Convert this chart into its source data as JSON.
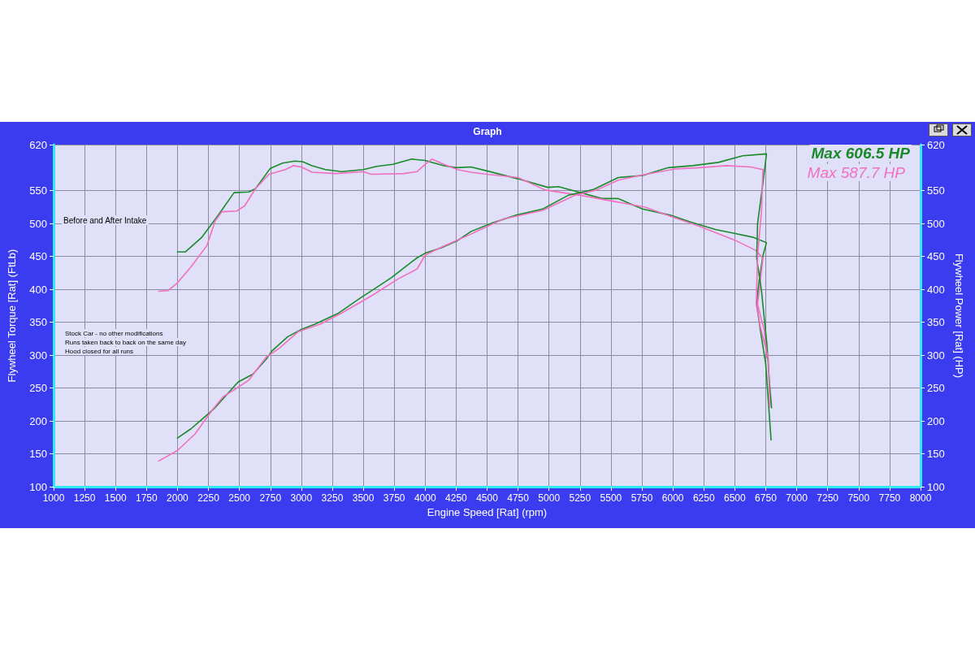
{
  "chart_data": {
    "type": "line",
    "title": "Graph",
    "xlabel": "Engine Speed [Rat] (rpm)",
    "ylabel": "Flywheel Torque [Rat] (FtLb)",
    "y2label": "Flywheel Power [Rat] (HP)",
    "xlim": [
      1000,
      8000
    ],
    "xticks": [
      1000,
      1250,
      1500,
      1750,
      2000,
      2250,
      2500,
      2750,
      3000,
      3250,
      3500,
      3750,
      4000,
      4250,
      4500,
      4750,
      5000,
      5250,
      5500,
      5750,
      6000,
      6250,
      6500,
      6750,
      7000,
      7250,
      7500,
      7750,
      8000
    ],
    "ylim": [
      100,
      620
    ],
    "yticks": [
      100,
      150,
      200,
      250,
      300,
      350,
      400,
      450,
      500,
      550,
      620
    ],
    "y2lim": [
      100,
      620
    ],
    "y2ticks": [
      100,
      150,
      200,
      250,
      300,
      350,
      400,
      450,
      500,
      550,
      620
    ],
    "grid": true,
    "annotations": [
      "Max 606.5 HP",
      "Max 587.7 HP",
      "Before and After Intake",
      "Stock Car - no other modifications",
      "Runs taken back to back on the same day",
      "Hood closed for all runs"
    ],
    "series": [
      {
        "color": "#1a8a2a",
        "x": [
          2000,
          2065,
          2196,
          2326,
          2457,
          2576,
          2630,
          2750,
          2848,
          2946,
          3011,
          3087,
          3196,
          3326,
          3500,
          3609,
          3739,
          3891,
          4000,
          4152,
          4250,
          4370,
          4500,
          4750,
          4991,
          5078,
          5253,
          5428,
          5559,
          5756,
          5974,
          6148,
          6345,
          6498,
          6651,
          6756,
          6727,
          6694,
          6677,
          6705,
          6750,
          6793
        ],
        "values": [
          457,
          457,
          479,
          512,
          547,
          548,
          553,
          584,
          592,
          595,
          594,
          588,
          582,
          579,
          582,
          587,
          590,
          598,
          596,
          588,
          585,
          586,
          580,
          568,
          555,
          556,
          547,
          538,
          538,
          522,
          513,
          502,
          491,
          485,
          479,
          471,
          451,
          410,
          377,
          340,
          286,
          171
        ]
      },
      {
        "color": "#f070c0",
        "x": [
          1848,
          1924,
          2000,
          2109,
          2239,
          2304,
          2359,
          2478,
          2543,
          2630,
          2739,
          2870,
          2935,
          3000,
          3087,
          3283,
          3500,
          3565,
          3826,
          3935,
          4000,
          4054,
          4152,
          4261,
          4370,
          4500,
          4750,
          4969,
          5253,
          5515,
          5777,
          5996,
          6214,
          6498,
          6672,
          6727,
          6684,
          6739,
          6760
        ],
        "values": [
          397,
          398,
          410,
          434,
          467,
          504,
          518,
          519,
          527,
          553,
          575,
          582,
          588,
          586,
          578,
          576,
          579,
          575,
          576,
          579,
          590,
          598,
          590,
          582,
          578,
          575,
          570,
          551,
          543,
          534,
          525,
          510,
          496,
          475,
          459,
          447,
          377,
          337,
          296
        ]
      },
      {
        "axis": "y2",
        "color": "#1a8a2a",
        "x": [
          2000,
          2109,
          2293,
          2370,
          2489,
          2609,
          2717,
          2761,
          2891,
          3000,
          3109,
          3293,
          3478,
          3609,
          3728,
          3935,
          4000,
          4130,
          4261,
          4370,
          4544,
          4739,
          4948,
          5155,
          5253,
          5362,
          5559,
          5756,
          5963,
          6159,
          6367,
          6563,
          6756,
          6727,
          6684,
          6677,
          6716,
          6760,
          6782,
          6797
        ],
        "values": [
          174,
          188,
          218,
          234,
          259,
          271,
          294,
          306,
          328,
          339,
          347,
          363,
          387,
          403,
          418,
          448,
          455,
          463,
          474,
          488,
          501,
          513,
          522,
          543,
          547,
          552,
          570,
          573,
          585,
          588,
          593,
          603,
          606,
          561,
          500,
          447,
          397,
          315,
          253,
          220
        ]
      },
      {
        "axis": "y2",
        "color": "#f070c0",
        "x": [
          1848,
          2000,
          2141,
          2283,
          2370,
          2489,
          2576,
          2717,
          2826,
          2978,
          3152,
          3326,
          3565,
          3783,
          3935,
          4000,
          4130,
          4239,
          4370,
          4402,
          4631,
          4948,
          5210,
          5384,
          5559,
          5756,
          6018,
          6214,
          6432,
          6629,
          6727,
          6716,
          6684,
          6673,
          6705,
          6771,
          6782
        ],
        "values": [
          139,
          155,
          180,
          217,
          237,
          251,
          262,
          297,
          311,
          336,
          347,
          364,
          390,
          416,
          431,
          452,
          464,
          473,
          484,
          487,
          507,
          520,
          543,
          551,
          566,
          574,
          583,
          585,
          588,
          586,
          582,
          520,
          451,
          377,
          344,
          295,
          221
        ]
      }
    ]
  }
}
